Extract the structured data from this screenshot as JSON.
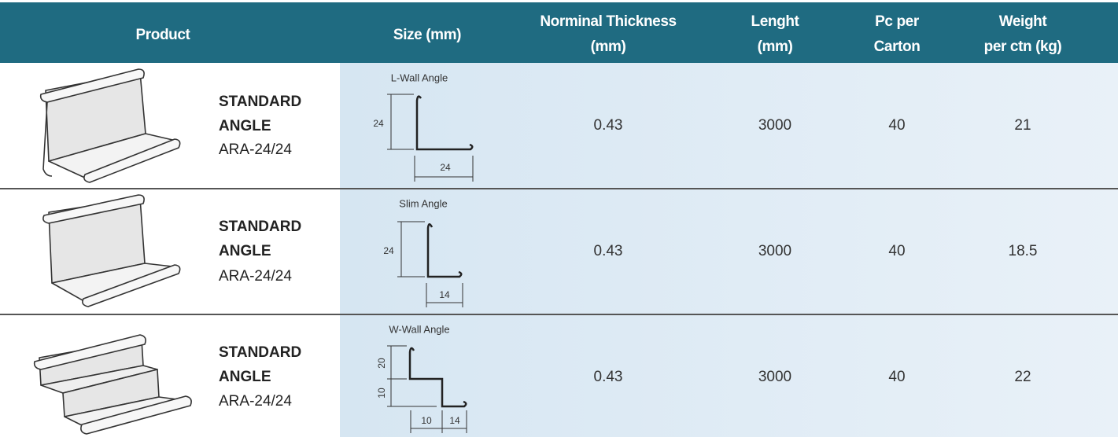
{
  "header": {
    "columns": [
      [
        "Product"
      ],
      [
        "Size (mm)"
      ],
      [
        "Norminal Thickness",
        "(mm)"
      ],
      [
        "Lenght",
        "(mm)"
      ],
      [
        "Pc per",
        "Carton"
      ],
      [
        "Weight",
        "per ctn (kg)"
      ]
    ]
  },
  "rows": [
    {
      "product": [
        "STANDARD",
        "ANGLE"
      ],
      "code": "ARA-24/24",
      "size": {
        "title": "L-Wall Angle",
        "dims": [
          "24",
          "24"
        ]
      },
      "thickness": "0.43",
      "length": "3000",
      "pcs": "40",
      "weight": "21"
    },
    {
      "product": [
        "STANDARD",
        "ANGLE"
      ],
      "code": "ARA-24/24",
      "size": {
        "title": "Slim Angle",
        "dims": [
          "24",
          "14"
        ]
      },
      "thickness": "0.43",
      "length": "3000",
      "pcs": "40",
      "weight": "18.5"
    },
    {
      "product": [
        "STANDARD",
        "ANGLE"
      ],
      "code": "ARA-24/24",
      "size": {
        "title": "W-Wall Angle",
        "dims": [
          "20",
          "10",
          "10",
          "14"
        ]
      },
      "thickness": "0.43",
      "length": "3000",
      "pcs": "40",
      "weight": "22"
    }
  ]
}
